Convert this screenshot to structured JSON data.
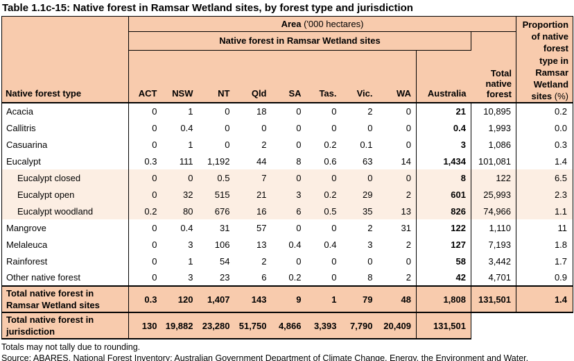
{
  "title": "Table 1.1c-15: Native forest in Ramsar Wetland sites, by forest type and jurisdiction",
  "colors": {
    "header_bg": "#F8CBAD",
    "subrow_bg": "#FCEEE3",
    "border": "#000000"
  },
  "table": {
    "header": {
      "row_label": "Native forest type",
      "area_label": "Area",
      "area_unit": "('000 hectares)",
      "ramsar_group": "Native forest in Ramsar Wetland sites",
      "jurisdictions": [
        "ACT",
        "NSW",
        "NT",
        "Qld",
        "SA",
        "Tas.",
        "Vic.",
        "WA",
        "Australia"
      ],
      "total_col": "Total native forest",
      "proportion_label": "Proportion\nof native\nforest\ntype in\nRamsar\nWetland\nsites",
      "proportion_unit": "(%)"
    },
    "rows": [
      {
        "label": "Acacia",
        "indent": false,
        "tint": false,
        "values": [
          "0",
          "1",
          "0",
          "18",
          "0",
          "0",
          "2",
          "0",
          "21",
          "10,895",
          "0.2"
        ]
      },
      {
        "label": "Callitris",
        "indent": false,
        "tint": false,
        "values": [
          "0",
          "0.4",
          "0",
          "0",
          "0",
          "0",
          "0",
          "0",
          "0.4",
          "1,993",
          "0.0"
        ]
      },
      {
        "label": "Casuarina",
        "indent": false,
        "tint": false,
        "values": [
          "0",
          "1",
          "0",
          "2",
          "0",
          "0.2",
          "0.1",
          "0",
          "3",
          "1,086",
          "0.3"
        ]
      },
      {
        "label": "Eucalypt",
        "indent": false,
        "tint": false,
        "values": [
          "0.3",
          "111",
          "1,192",
          "44",
          "8",
          "0.6",
          "63",
          "14",
          "1,434",
          "101,081",
          "1.4"
        ]
      },
      {
        "label": "Eucalypt closed",
        "indent": true,
        "tint": true,
        "values": [
          "0",
          "0",
          "0.5",
          "7",
          "0",
          "0",
          "0",
          "0",
          "8",
          "122",
          "6.5"
        ]
      },
      {
        "label": "Eucalypt open",
        "indent": true,
        "tint": true,
        "values": [
          "0",
          "32",
          "515",
          "21",
          "3",
          "0.2",
          "29",
          "2",
          "601",
          "25,993",
          "2.3"
        ]
      },
      {
        "label": "Eucalypt woodland",
        "indent": true,
        "tint": true,
        "values": [
          "0.2",
          "80",
          "676",
          "16",
          "6",
          "0.5",
          "35",
          "13",
          "826",
          "74,966",
          "1.1"
        ]
      },
      {
        "label": "Mangrove",
        "indent": false,
        "tint": false,
        "values": [
          "0",
          "0.4",
          "31",
          "57",
          "0",
          "0",
          "2",
          "31",
          "122",
          "1,110",
          "11"
        ]
      },
      {
        "label": "Melaleuca",
        "indent": false,
        "tint": false,
        "values": [
          "0",
          "3",
          "106",
          "13",
          "0.4",
          "0.4",
          "3",
          "2",
          "127",
          "7,193",
          "1.8"
        ]
      },
      {
        "label": "Rainforest",
        "indent": false,
        "tint": false,
        "values": [
          "0",
          "1",
          "54",
          "2",
          "0",
          "0",
          "0",
          "0",
          "58",
          "3,442",
          "1.7"
        ]
      },
      {
        "label": "Other native forest",
        "indent": false,
        "tint": false,
        "values": [
          "0",
          "3",
          "23",
          "6",
          "0.2",
          "0",
          "8",
          "2",
          "42",
          "4,701",
          "0.9"
        ]
      }
    ],
    "total_rows": [
      {
        "label": "Total native forest in Ramsar Wetland sites",
        "values": [
          "0.3",
          "120",
          "1,407",
          "143",
          "9",
          "1",
          "79",
          "48",
          "1,808",
          "131,501",
          "1.4"
        ]
      },
      {
        "label": "Total native forest in jurisdiction",
        "values": [
          "130",
          "19,882",
          "23,280",
          "51,750",
          "4,866",
          "3,393",
          "7,790",
          "20,409",
          "131,501"
        ]
      }
    ]
  },
  "footnotes": [
    "Totals may not tally due to rounding.",
    "Source: ABARES, National Forest Inventory; Australian Government Department of Climate Change, Energy, the Environment and Water."
  ]
}
